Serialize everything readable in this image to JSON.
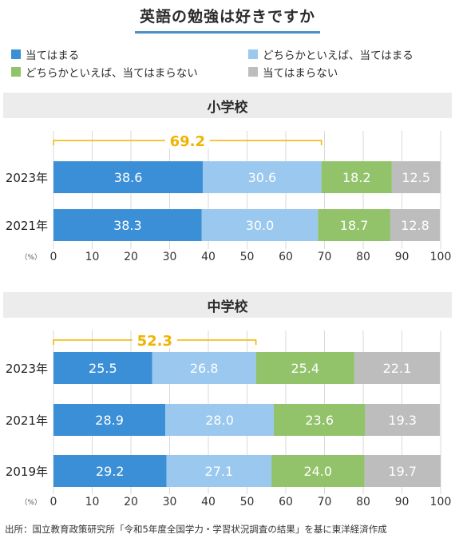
{
  "title": "英語の勉強は好きですか",
  "legend": [
    {
      "label": "当てはまる",
      "color": "#3b8fd6"
    },
    {
      "label": "どちらかといえば、当てはまる",
      "color": "#9ac8ee"
    },
    {
      "label": "どちらかといえば、当てはまらない",
      "color": "#92c36a"
    },
    {
      "label": "当てはまらない",
      "color": "#bdbdbd"
    }
  ],
  "source": "出所：国立教育政策研究所「令和5年度全国学力・学習状況調査の結果」を基に東洋経済作成",
  "chart_data": [
    {
      "type": "bar",
      "orientation": "horizontal-stacked",
      "title": "小学校",
      "unit": "（%）",
      "xlim": [
        0,
        100
      ],
      "ticks": [
        "0",
        "10",
        "20",
        "30",
        "40",
        "50",
        "60",
        "70",
        "80",
        "90",
        "100"
      ],
      "categories": [
        "2023年",
        "2021年"
      ],
      "series": [
        {
          "name": "当てはまる",
          "values": [
            38.6,
            38.3
          ]
        },
        {
          "name": "どちらかといえば、当てはまる",
          "values": [
            30.6,
            30.0
          ]
        },
        {
          "name": "どちらかといえば、当てはまらない",
          "values": [
            18.2,
            18.7
          ]
        },
        {
          "name": "当てはまらない",
          "values": [
            12.5,
            12.8
          ]
        }
      ],
      "value_labels": [
        [
          "38.6",
          "30.6",
          "18.2",
          "12.5"
        ],
        [
          "38.3",
          "30.0",
          "18.7",
          "12.8"
        ]
      ],
      "annotation": {
        "label": "69.2",
        "from": 0,
        "to": 69.2
      }
    },
    {
      "type": "bar",
      "orientation": "horizontal-stacked",
      "title": "中学校",
      "unit": "（%）",
      "xlim": [
        0,
        100
      ],
      "ticks": [
        "0",
        "10",
        "20",
        "30",
        "40",
        "50",
        "60",
        "70",
        "80",
        "90",
        "100"
      ],
      "categories": [
        "2023年",
        "2021年",
        "2019年"
      ],
      "series": [
        {
          "name": "当てはまる",
          "values": [
            25.5,
            28.9,
            29.2
          ]
        },
        {
          "name": "どちらかといえば、当てはまる",
          "values": [
            26.8,
            28.0,
            27.1
          ]
        },
        {
          "name": "どちらかといえば、当てはまらない",
          "values": [
            25.4,
            23.6,
            24.0
          ]
        },
        {
          "name": "当てはまらない",
          "values": [
            22.1,
            19.3,
            19.7
          ]
        }
      ],
      "value_labels": [
        [
          "25.5",
          "26.8",
          "25.4",
          "22.1"
        ],
        [
          "28.9",
          "28.0",
          "23.6",
          "19.3"
        ],
        [
          "29.2",
          "27.1",
          "24.0",
          "19.7"
        ]
      ],
      "annotation": {
        "label": "52.3",
        "from": 0,
        "to": 52.3
      }
    }
  ],
  "annotation_color": "#f0b400",
  "grid": true
}
